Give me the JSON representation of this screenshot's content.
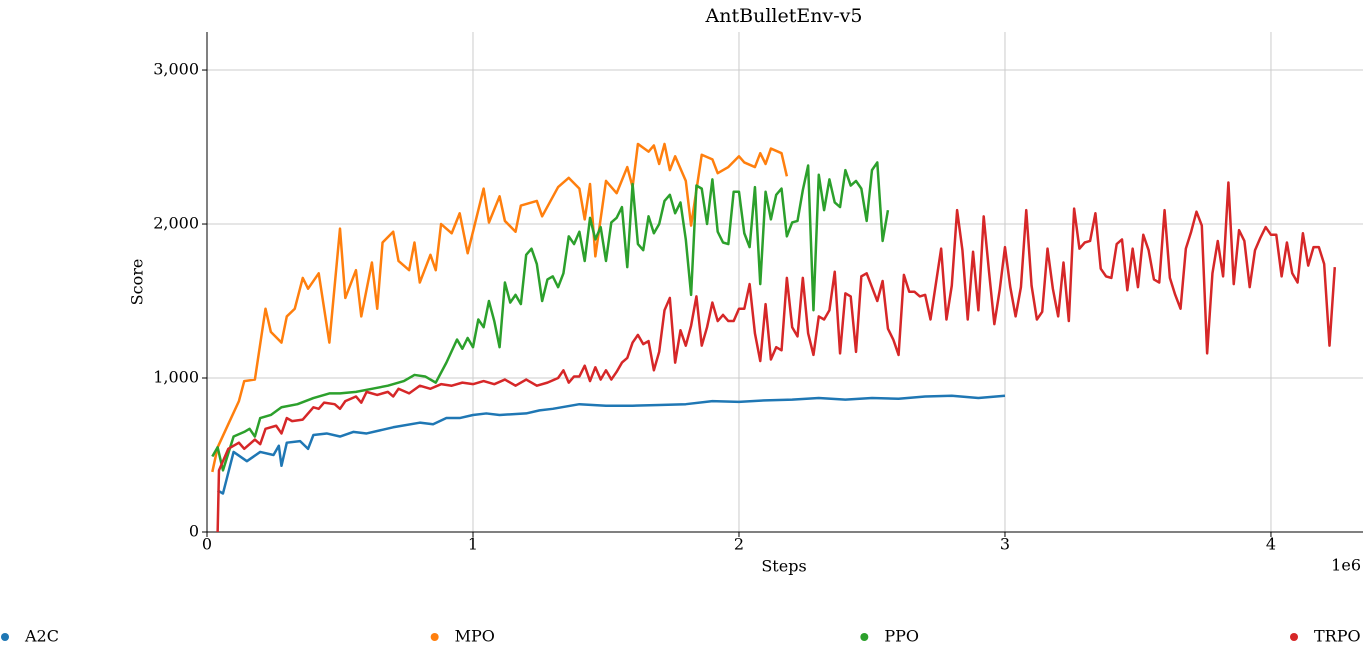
{
  "chart_data": {
    "type": "line",
    "title": "AntBulletEnv-v5",
    "x_label": "Steps",
    "y_label": "Score",
    "x_offset_label": "1e6",
    "xlim": [
      0,
      4346000
    ],
    "ylim": [
      0,
      3247
    ],
    "xticks": [
      0,
      {
        "value": 1000000,
        "label": "1"
      },
      {
        "value": 2000000,
        "label": "2"
      },
      {
        "value": 3000000,
        "label": "3"
      },
      {
        "value": 4000000,
        "label": "4"
      }
    ],
    "yticks": [
      0,
      {
        "value": 1000,
        "label": "1,000"
      },
      {
        "value": 2000,
        "label": "2,000"
      },
      {
        "value": 3000,
        "label": "3,000"
      }
    ],
    "grid": true,
    "legend": "bottom",
    "series": [
      {
        "name": "A2C",
        "color": "#1f77b4",
        "x": [
          40000,
          60000,
          100000,
          150000,
          200000,
          250000,
          270000,
          280000,
          300000,
          350000,
          380000,
          400000,
          450000,
          500000,
          550000,
          600000,
          650000,
          700000,
          800000,
          850000,
          900000,
          950000,
          1000000,
          1050000,
          1100000,
          1200000,
          1250000,
          1300000,
          1400000,
          1500000,
          1600000,
          1700000,
          1800000,
          1900000,
          2000000,
          2100000,
          2200000,
          2300000,
          2400000,
          2500000,
          2600000,
          2700000,
          2800000,
          2900000,
          3000000
        ],
        "values": [
          270,
          250,
          520,
          460,
          520,
          500,
          560,
          430,
          580,
          590,
          540,
          630,
          640,
          620,
          650,
          640,
          660,
          680,
          710,
          700,
          740,
          740,
          760,
          770,
          760,
          770,
          790,
          800,
          830,
          820,
          820,
          825,
          830,
          850,
          845,
          855,
          860,
          870,
          860,
          870,
          865,
          880,
          885,
          870,
          885
        ]
      },
      {
        "name": "MPO",
        "color": "#ff7f0e",
        "x": [
          20000,
          40000,
          80000,
          120000,
          140000,
          180000,
          220000,
          240000,
          280000,
          300000,
          330000,
          360000,
          380000,
          420000,
          460000,
          500000,
          520000,
          560000,
          580000,
          620000,
          640000,
          660000,
          700000,
          720000,
          760000,
          780000,
          800000,
          840000,
          860000,
          880000,
          920000,
          950000,
          980000,
          1040000,
          1060000,
          1100000,
          1120000,
          1160000,
          1180000,
          1240000,
          1260000,
          1320000,
          1360000,
          1400000,
          1420000,
          1440000,
          1460000,
          1500000,
          1540000,
          1580000,
          1600000,
          1620000,
          1660000,
          1680000,
          1700000,
          1720000,
          1740000,
          1760000,
          1800000,
          1820000,
          1860000,
          1900000,
          1920000,
          1960000,
          2000000,
          2020000,
          2060000,
          2080000,
          2100000,
          2120000,
          2160000,
          2180000
        ],
        "values": [
          390,
          550,
          700,
          850,
          980,
          990,
          1450,
          1300,
          1230,
          1400,
          1450,
          1650,
          1580,
          1680,
          1230,
          1970,
          1520,
          1700,
          1400,
          1750,
          1450,
          1880,
          1950,
          1760,
          1700,
          1880,
          1620,
          1800,
          1700,
          2000,
          1940,
          2070,
          1810,
          2230,
          2010,
          2180,
          2020,
          1950,
          2120,
          2150,
          2050,
          2240,
          2300,
          2230,
          2030,
          2260,
          1790,
          2280,
          2200,
          2370,
          2240,
          2520,
          2470,
          2510,
          2390,
          2520,
          2350,
          2440,
          2280,
          1990,
          2450,
          2420,
          2330,
          2370,
          2440,
          2400,
          2370,
          2460,
          2390,
          2490,
          2460,
          2310
        ]
      },
      {
        "name": "PPO",
        "color": "#2ca02c",
        "x": [
          20000,
          40000,
          60000,
          100000,
          140000,
          160000,
          180000,
          200000,
          240000,
          280000,
          340000,
          400000,
          460000,
          500000,
          560000,
          620000,
          680000,
          740000,
          780000,
          820000,
          860000,
          900000,
          940000,
          960000,
          980000,
          1000000,
          1020000,
          1040000,
          1060000,
          1080000,
          1100000,
          1120000,
          1140000,
          1160000,
          1180000,
          1200000,
          1220000,
          1240000,
          1260000,
          1280000,
          1300000,
          1320000,
          1340000,
          1360000,
          1380000,
          1400000,
          1420000,
          1440000,
          1460000,
          1480000,
          1500000,
          1520000,
          1540000,
          1560000,
          1580000,
          1600000,
          1620000,
          1640000,
          1660000,
          1680000,
          1700000,
          1720000,
          1740000,
          1760000,
          1780000,
          1800000,
          1820000,
          1840000,
          1860000,
          1880000,
          1900000,
          1920000,
          1940000,
          1960000,
          1980000,
          2000000,
          2020000,
          2040000,
          2060000,
          2080000,
          2100000,
          2120000,
          2140000,
          2160000,
          2180000,
          2200000,
          2220000,
          2240000,
          2260000,
          2280000,
          2300000,
          2320000,
          2340000,
          2360000,
          2380000,
          2400000,
          2420000,
          2440000,
          2460000,
          2480000,
          2500000,
          2520000,
          2540000,
          2560000
        ],
        "values": [
          490,
          550,
          400,
          620,
          650,
          670,
          620,
          740,
          760,
          810,
          830,
          870,
          900,
          900,
          910,
          930,
          950,
          980,
          1020,
          1010,
          970,
          1100,
          1250,
          1190,
          1260,
          1200,
          1380,
          1330,
          1500,
          1370,
          1200,
          1620,
          1490,
          1540,
          1480,
          1800,
          1840,
          1740,
          1500,
          1640,
          1660,
          1590,
          1680,
          1920,
          1870,
          1950,
          1760,
          2040,
          1900,
          1980,
          1760,
          2010,
          2040,
          2110,
          1720,
          2260,
          1870,
          1830,
          2050,
          1940,
          2000,
          2150,
          2190,
          2070,
          2140,
          1900,
          1540,
          2250,
          2230,
          2000,
          2290,
          1950,
          1880,
          1870,
          2210,
          2210,
          1940,
          1850,
          2240,
          1610,
          2210,
          2030,
          2190,
          2230,
          1920,
          2010,
          2020,
          2220,
          2380,
          1440,
          2320,
          2090,
          2290,
          2140,
          2110,
          2350,
          2250,
          2280,
          2230,
          2020,
          2350,
          2400,
          1890,
          2090
        ]
      },
      {
        "name": "TRPO",
        "color": "#d62728",
        "x": [
          40000,
          45000,
          80000,
          120000,
          140000,
          180000,
          200000,
          220000,
          260000,
          280000,
          300000,
          320000,
          360000,
          400000,
          420000,
          440000,
          480000,
          500000,
          520000,
          560000,
          580000,
          600000,
          640000,
          680000,
          700000,
          720000,
          760000,
          800000,
          840000,
          880000,
          920000,
          960000,
          1000000,
          1040000,
          1080000,
          1120000,
          1160000,
          1200000,
          1240000,
          1280000,
          1320000,
          1340000,
          1360000,
          1380000,
          1400000,
          1420000,
          1440000,
          1460000,
          1480000,
          1500000,
          1520000,
          1540000,
          1560000,
          1580000,
          1600000,
          1620000,
          1640000,
          1660000,
          1680000,
          1700000,
          1720000,
          1740000,
          1760000,
          1780000,
          1800000,
          1820000,
          1840000,
          1860000,
          1880000,
          1900000,
          1920000,
          1940000,
          1960000,
          1980000,
          2000000,
          2020000,
          2040000,
          2060000,
          2080000,
          2100000,
          2120000,
          2140000,
          2160000,
          2180000,
          2200000,
          2220000,
          2240000,
          2260000,
          2280000,
          2300000,
          2320000,
          2340000,
          2360000,
          2380000,
          2400000,
          2420000,
          2440000,
          2460000,
          2480000,
          2500000,
          2520000,
          2540000,
          2560000,
          2580000,
          2600000,
          2620000,
          2640000,
          2660000,
          2680000,
          2700000,
          2720000,
          2740000,
          2760000,
          2780000,
          2800000,
          2820000,
          2840000,
          2860000,
          2880000,
          2900000,
          2920000,
          2940000,
          2960000,
          2980000,
          3000000,
          3020000,
          3040000,
          3060000,
          3080000,
          3100000,
          3120000,
          3140000,
          3160000,
          3180000,
          3200000,
          3220000,
          3240000,
          3260000,
          3280000,
          3300000,
          3320000,
          3340000,
          3360000,
          3380000,
          3400000,
          3420000,
          3440000,
          3460000,
          3480000,
          3500000,
          3520000,
          3540000,
          3560000,
          3580000,
          3600000,
          3620000,
          3640000,
          3660000,
          3680000,
          3700000,
          3720000,
          3740000,
          3760000,
          3780000,
          3800000,
          3820000,
          3840000,
          3860000,
          3880000,
          3900000,
          3920000,
          3940000,
          3960000,
          3980000,
          4000000,
          4020000,
          4040000,
          4060000,
          4080000,
          4100000,
          4120000,
          4140000,
          4160000,
          4180000,
          4200000,
          4220000,
          4240000
        ],
        "values": [
          0,
          400,
          540,
          580,
          540,
          600,
          570,
          670,
          690,
          640,
          740,
          720,
          730,
          810,
          800,
          840,
          830,
          800,
          850,
          880,
          840,
          910,
          890,
          910,
          880,
          930,
          900,
          950,
          930,
          960,
          950,
          970,
          960,
          980,
          960,
          990,
          950,
          990,
          950,
          970,
          1000,
          1050,
          970,
          1010,
          1010,
          1080,
          980,
          1070,
          990,
          1050,
          990,
          1040,
          1100,
          1130,
          1230,
          1280,
          1220,
          1240,
          1050,
          1170,
          1440,
          1520,
          1100,
          1310,
          1210,
          1340,
          1530,
          1210,
          1330,
          1490,
          1370,
          1410,
          1370,
          1370,
          1450,
          1450,
          1610,
          1290,
          1110,
          1480,
          1120,
          1200,
          1180,
          1650,
          1330,
          1270,
          1650,
          1290,
          1150,
          1400,
          1380,
          1440,
          1690,
          1160,
          1550,
          1530,
          1170,
          1660,
          1680,
          1590,
          1500,
          1630,
          1320,
          1250,
          1150,
          1670,
          1560,
          1560,
          1530,
          1540,
          1380,
          1610,
          1840,
          1380,
          1600,
          2090,
          1830,
          1380,
          1820,
          1440,
          2050,
          1690,
          1350,
          1570,
          1850,
          1590,
          1400,
          1590,
          2090,
          1600,
          1380,
          1430,
          1840,
          1580,
          1400,
          1750,
          1370,
          2100,
          1840,
          1880,
          1890,
          2070,
          1710,
          1660,
          1650,
          1870,
          1900,
          1570,
          1840,
          1590,
          1930,
          1830,
          1640,
          1620,
          2090,
          1650,
          1540,
          1450,
          1840,
          1950,
          2080,
          1990,
          1160,
          1680,
          1890,
          1660,
          2270,
          1610,
          1960,
          1890,
          1590,
          1830,
          1910,
          1980,
          1930,
          1930,
          1660,
          1880,
          1680,
          1620,
          1940,
          1730,
          1850,
          1850,
          1740,
          1210,
          1720
        ]
      }
    ]
  }
}
